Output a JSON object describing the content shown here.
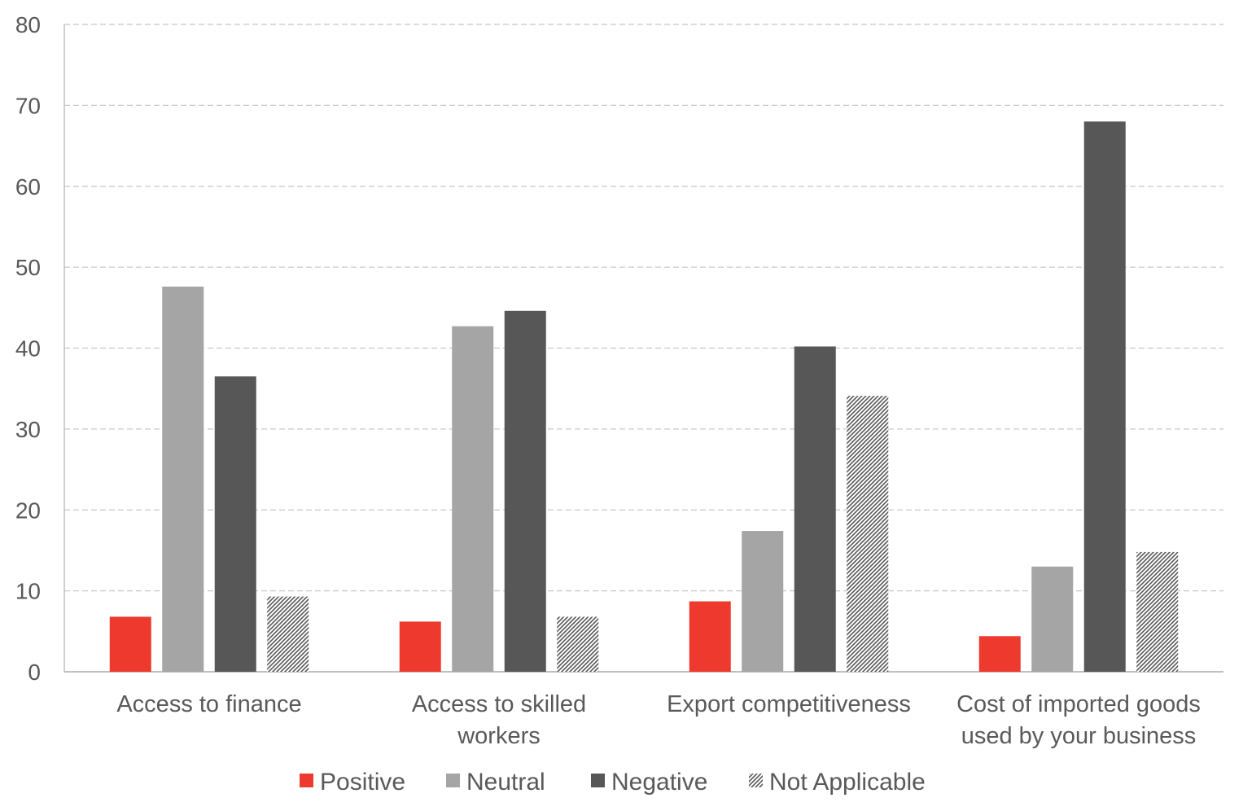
{
  "chart_data": {
    "type": "bar",
    "title": "",
    "xlabel": "",
    "ylabel": "",
    "ylim": [
      0,
      80
    ],
    "yticks": [
      "0",
      "10",
      "20",
      "30",
      "40",
      "50",
      "60",
      "70",
      "80"
    ],
    "grid": true,
    "legend_position": "bottom",
    "categories": [
      [
        "Access to finance"
      ],
      [
        "Access to skilled",
        "workers"
      ],
      [
        "Export competitiveness"
      ],
      [
        "Cost of imported goods",
        "used by your business"
      ]
    ],
    "series": [
      {
        "name": "Positive",
        "values": [
          6.8,
          6.2,
          8.7,
          4.4
        ],
        "color": "#ee3a2e",
        "pattern": "solid"
      },
      {
        "name": "Neutral",
        "values": [
          47.6,
          42.7,
          17.4,
          13.0
        ],
        "color": "#a5a5a5",
        "pattern": "solid"
      },
      {
        "name": "Negative",
        "values": [
          36.5,
          44.6,
          40.2,
          68.0
        ],
        "color": "#575757",
        "pattern": "solid"
      },
      {
        "name": "Not Applicable",
        "values": [
          9.3,
          6.8,
          34.1,
          14.8
        ],
        "color": "#7f7f7f",
        "pattern": "hatch"
      }
    ]
  }
}
